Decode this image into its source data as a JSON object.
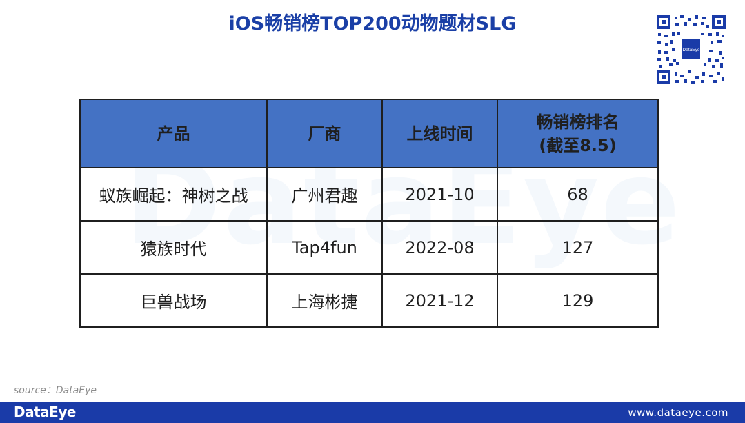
{
  "title": "iOS畅销榜TOP200动物题材SLG",
  "watermark": "DataEye",
  "qr_logo_text": "DataEye",
  "table": {
    "headers": [
      "产品",
      "厂商",
      "上线时间",
      "畅销榜排名\n(截至8.5)"
    ],
    "rows": [
      [
        "蚁族崛起：神树之战",
        "广州君趣",
        "2021-10",
        "68"
      ],
      [
        "猿族时代",
        "Tap4fun",
        "2022-08",
        "127"
      ],
      [
        "巨兽战场",
        "上海彬捷",
        "2021-12",
        "129"
      ]
    ]
  },
  "source": "source：DataEye",
  "footer": {
    "logo": "DataEye",
    "url": "www.dataeye.com"
  },
  "colors": {
    "title": "#1a3fa6",
    "header_bg": "#4472c4",
    "footer_bg": "#1a3ba8"
  }
}
